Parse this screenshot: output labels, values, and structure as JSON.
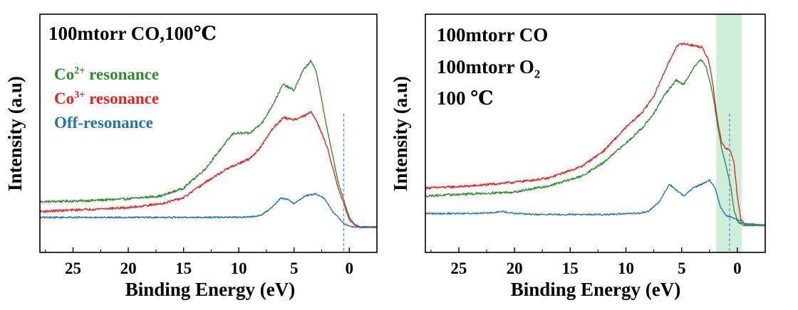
{
  "chart_data": [
    {
      "type": "line",
      "panel": "left",
      "xlabel": "Binding Energy (eV)",
      "ylabel": "Intensity (a.u)",
      "xlim": [
        28,
        -2.5
      ],
      "ylim": [
        0,
        1
      ],
      "x_reversed": true,
      "xticks": [
        25,
        20,
        15,
        10,
        5,
        0
      ],
      "show_y_tick_labels": false,
      "grid": false,
      "annotations": [
        {
          "id": "conditions",
          "parts": [
            {
              "t": "100mtorr CO,100℃"
            }
          ],
          "color": "#000000"
        }
      ],
      "legend": {
        "placement": "top-left",
        "entries": [
          {
            "parts": [
              {
                "t": "Co"
              },
              {
                "t": "2+",
                "sup": true
              },
              {
                "t": " resonance"
              }
            ],
            "color": "#2e8b2e"
          },
          {
            "parts": [
              {
                "t": "Co"
              },
              {
                "t": "3+",
                "sup": true
              },
              {
                "t": " resonance"
              }
            ],
            "color": "#e8231f"
          },
          {
            "parts": [
              {
                "t": "Off-resonance"
              }
            ],
            "color": "#2274b8"
          }
        ]
      },
      "vlines": [
        {
          "x": 0.5,
          "style": "dashed",
          "color": "#5b8fd0"
        }
      ],
      "series": [
        {
          "name": "Co2+ resonance",
          "color": "#2e8b2e",
          "noise": 0.006,
          "x": [
            28,
            24,
            20,
            17,
            15,
            13,
            11.5,
            10.5,
            9,
            7.8,
            6.8,
            6,
            5,
            4.2,
            3.5,
            3,
            2,
            1,
            0,
            -0.5,
            -1,
            -2.5
          ],
          "y": [
            0.15,
            0.155,
            0.165,
            0.18,
            0.22,
            0.32,
            0.43,
            0.5,
            0.5,
            0.56,
            0.66,
            0.75,
            0.72,
            0.82,
            0.87,
            0.82,
            0.52,
            0.25,
            0.07,
            0.03,
            0.02,
            0.02
          ]
        },
        {
          "name": "Co3+ resonance",
          "color": "#e8231f",
          "noise": 0.006,
          "x": [
            28,
            24,
            20,
            17,
            15,
            13,
            11,
            9,
            8,
            7,
            6,
            5,
            4,
            3.5,
            3,
            2,
            1,
            0,
            -0.5,
            -1,
            -2.5
          ],
          "y": [
            0.1,
            0.11,
            0.12,
            0.14,
            0.17,
            0.25,
            0.32,
            0.37,
            0.43,
            0.52,
            0.58,
            0.57,
            0.59,
            0.61,
            0.57,
            0.43,
            0.22,
            0.06,
            0.03,
            0.02,
            0.02
          ]
        },
        {
          "name": "Off-resonance",
          "color": "#2274b8",
          "noise": 0.004,
          "x": [
            28,
            20,
            12,
            9,
            8,
            7,
            6.2,
            5.5,
            5,
            4,
            3,
            2.3,
            1.5,
            0.5,
            0,
            -0.5,
            -2.5
          ],
          "y": [
            0.07,
            0.07,
            0.07,
            0.072,
            0.08,
            0.12,
            0.17,
            0.16,
            0.14,
            0.18,
            0.19,
            0.17,
            0.1,
            0.04,
            0.025,
            0.02,
            0.02
          ]
        }
      ]
    },
    {
      "type": "line",
      "panel": "right",
      "xlabel": "Binding Energy (eV)",
      "ylabel": "Intensity (a.u)",
      "xlim": [
        28,
        -2.5
      ],
      "ylim": [
        0,
        1
      ],
      "x_reversed": true,
      "xticks": [
        25,
        20,
        15,
        10,
        5,
        0
      ],
      "show_y_tick_labels": false,
      "grid": false,
      "annotations": [
        {
          "id": "line1",
          "parts": [
            {
              "t": "100mtorr CO"
            }
          ],
          "color": "#000000"
        },
        {
          "id": "line2",
          "parts": [
            {
              "t": "100mtorr O"
            },
            {
              "t": "2",
              "sub": true
            }
          ],
          "color": "#000000"
        },
        {
          "id": "line3",
          "parts": [
            {
              "t": "100 ℃"
            }
          ],
          "color": "#000000"
        }
      ],
      "shaded_region": {
        "x_from": 1.9,
        "x_to": -0.4,
        "color": "#bfe8cc"
      },
      "vlines": [
        {
          "x": 0.7,
          "style": "dashed",
          "color": "#5b8fd0"
        }
      ],
      "series": [
        {
          "name": "Co3+ resonance",
          "color": "#e8231f",
          "noise": 0.006,
          "x": [
            28,
            24,
            20,
            17,
            14,
            12,
            10,
            8.5,
            7.5,
            6.5,
            5.5,
            5,
            4,
            3.2,
            2.6,
            2.2,
            1.8,
            1.4,
            1,
            0.7,
            0.3,
            0,
            -0.3,
            -0.8,
            -2.5
          ],
          "y": [
            0.22,
            0.23,
            0.25,
            0.27,
            0.33,
            0.41,
            0.53,
            0.61,
            0.69,
            0.82,
            0.94,
            0.96,
            0.95,
            0.94,
            0.88,
            0.75,
            0.57,
            0.45,
            0.42,
            0.42,
            0.35,
            0.18,
            0.06,
            0.03,
            0.03
          ]
        },
        {
          "name": "Co2+ resonance",
          "color": "#2e8b2e",
          "noise": 0.006,
          "x": [
            28,
            24,
            20,
            17,
            14,
            12,
            10,
            8.5,
            7.5,
            6.5,
            5.5,
            4.8,
            4,
            3.3,
            2.8,
            2.2,
            1.8,
            1.4,
            1,
            0.6,
            0.3,
            0,
            -0.5,
            -2.5
          ],
          "y": [
            0.18,
            0.19,
            0.2,
            0.23,
            0.28,
            0.35,
            0.45,
            0.53,
            0.6,
            0.7,
            0.77,
            0.75,
            0.83,
            0.88,
            0.84,
            0.7,
            0.55,
            0.42,
            0.33,
            0.23,
            0.11,
            0.05,
            0.03,
            0.03
          ]
        },
        {
          "name": "Off-resonance",
          "color": "#2274b8",
          "noise": 0.004,
          "x": [
            28,
            24,
            22,
            21,
            20,
            18,
            12,
            9,
            8,
            7,
            6.1,
            5.5,
            4.8,
            4,
            3.2,
            2.5,
            2,
            1.5,
            1,
            0.5,
            0,
            -0.5,
            -2.5
          ],
          "y": [
            0.09,
            0.09,
            0.095,
            0.1,
            0.09,
            0.085,
            0.085,
            0.09,
            0.1,
            0.15,
            0.24,
            0.21,
            0.18,
            0.22,
            0.24,
            0.26,
            0.22,
            0.12,
            0.08,
            0.07,
            0.06,
            0.04,
            0.03
          ]
        }
      ]
    }
  ]
}
